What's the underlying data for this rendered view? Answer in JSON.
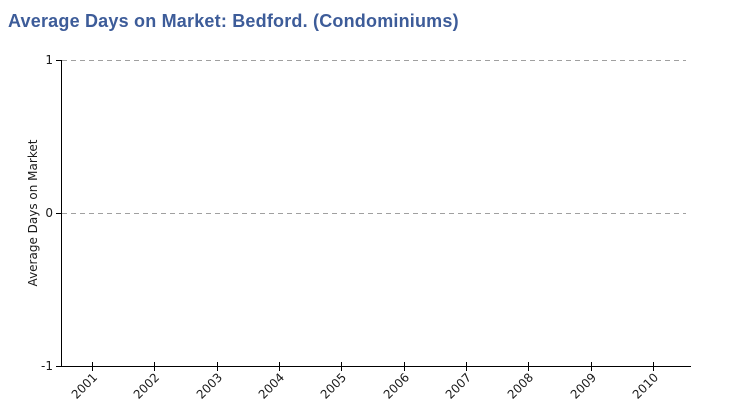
{
  "colors": {
    "title": "#3d5c99",
    "axis": "#000000",
    "grid": "#a0a0a0",
    "tick_label": "#1a1a1a",
    "background": "#ffffff"
  },
  "chart_data": {
    "type": "line",
    "title": "Average Days on Market: Bedford. (Condominiums)",
    "ylabel": "Average Days on Market",
    "xlabel": "",
    "categories": [
      "2001",
      "2002",
      "2003",
      "2004",
      "2005",
      "2006",
      "2007",
      "2008",
      "2009",
      "2010"
    ],
    "series": [],
    "ylim": [
      -1,
      1
    ],
    "y_ticks": [
      {
        "label": "1",
        "value": 1
      },
      {
        "label": "0",
        "value": 0
      },
      {
        "label": "-1",
        "value": -1
      }
    ],
    "gridlines_y": [
      1,
      0
    ],
    "grid": true,
    "grid_style": "dashed",
    "legend": false,
    "x_tick_rotation_deg": 45
  }
}
